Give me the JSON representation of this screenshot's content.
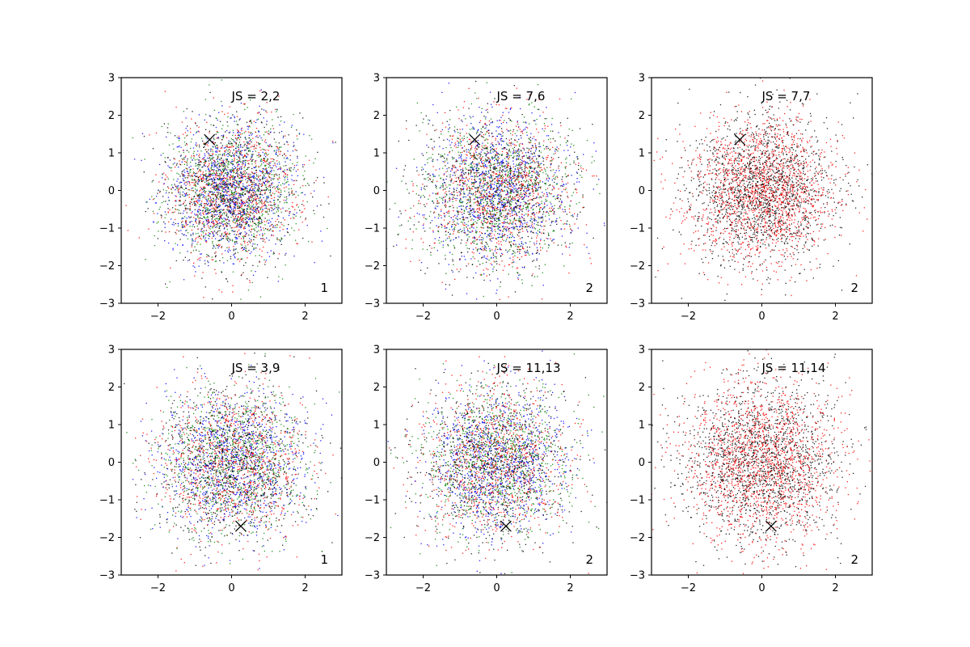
{
  "chart_data": [
    {
      "type": "scatter",
      "annotation": "JS = 2,2",
      "corner_label": "1",
      "xlim": [
        -3,
        3
      ],
      "ylim": [
        -3,
        3
      ],
      "x_ticks": [
        "−2",
        "0",
        "2"
      ],
      "y_ticks": [
        "−3",
        "−2",
        "−1",
        "0",
        "1",
        "2",
        "3"
      ],
      "grid": false,
      "point_colors": [
        "#0000ff",
        "#008000",
        "#ff0000",
        "#000000"
      ],
      "marker": {
        "x": -0.6,
        "y": 1.35
      },
      "point_cloud": {
        "center": [
          0,
          0
        ],
        "std": 0.9,
        "points_per_color": 900
      }
    },
    {
      "type": "scatter",
      "annotation": "JS = 7,6",
      "corner_label": "2",
      "xlim": [
        -3,
        3
      ],
      "ylim": [
        -3,
        3
      ],
      "x_ticks": [
        "−2",
        "0",
        "2"
      ],
      "y_ticks": [
        "−3",
        "−2",
        "−1",
        "0",
        "1",
        "2",
        "3"
      ],
      "grid": false,
      "point_colors": [
        "#0000ff",
        "#008000",
        "#ff0000",
        "#000000"
      ],
      "marker": {
        "x": -0.6,
        "y": 1.35
      },
      "point_cloud": {
        "center": [
          0,
          0
        ],
        "std": 1.0,
        "points_per_color": 900
      }
    },
    {
      "type": "scatter",
      "annotation": "JS = 7,7",
      "corner_label": "2",
      "xlim": [
        -3,
        3
      ],
      "ylim": [
        -3,
        3
      ],
      "x_ticks": [
        "−2",
        "0",
        "2"
      ],
      "y_ticks": [
        "−3",
        "−2",
        "−1",
        "0",
        "1",
        "2",
        "3"
      ],
      "grid": false,
      "point_colors": [
        "#ff0000",
        "#000000"
      ],
      "marker": {
        "x": -0.6,
        "y": 1.35
      },
      "point_cloud": {
        "center": [
          0,
          0
        ],
        "std": 1.0,
        "points_per_color": 1600
      }
    },
    {
      "type": "scatter",
      "annotation": "JS = 3,9",
      "corner_label": "1",
      "xlim": [
        -3,
        3
      ],
      "ylim": [
        -3,
        3
      ],
      "x_ticks": [
        "−2",
        "0",
        "2"
      ],
      "y_ticks": [
        "−3",
        "−2",
        "−1",
        "0",
        "1",
        "2",
        "3"
      ],
      "grid": false,
      "point_colors": [
        "#0000ff",
        "#008000",
        "#ff0000",
        "#000000"
      ],
      "marker": {
        "x": 0.25,
        "y": -1.7
      },
      "point_cloud": {
        "center": [
          0,
          0
        ],
        "std": 1.0,
        "points_per_color": 900
      }
    },
    {
      "type": "scatter",
      "annotation": "JS = 11,13",
      "corner_label": "2",
      "xlim": [
        -3,
        3
      ],
      "ylim": [
        -3,
        3
      ],
      "x_ticks": [
        "−2",
        "0",
        "2"
      ],
      "y_ticks": [
        "−3",
        "−2",
        "−1",
        "0",
        "1",
        "2",
        "3"
      ],
      "grid": false,
      "point_colors": [
        "#0000ff",
        "#008000",
        "#ff0000",
        "#000000"
      ],
      "marker": {
        "x": 0.25,
        "y": -1.7
      },
      "point_cloud": {
        "center": [
          0,
          0
        ],
        "std": 1.0,
        "points_per_color": 900
      }
    },
    {
      "type": "scatter",
      "annotation": "JS = 11,14",
      "corner_label": "2",
      "xlim": [
        -3,
        3
      ],
      "ylim": [
        -3,
        3
      ],
      "x_ticks": [
        "−2",
        "0",
        "2"
      ],
      "y_ticks": [
        "−3",
        "−2",
        "−1",
        "0",
        "1",
        "2",
        "3"
      ],
      "grid": false,
      "point_colors": [
        "#ff0000",
        "#000000"
      ],
      "marker": {
        "x": 0.25,
        "y": -1.7
      },
      "point_cloud": {
        "center": [
          0,
          0
        ],
        "std": 1.05,
        "points_per_color": 1600
      }
    }
  ]
}
